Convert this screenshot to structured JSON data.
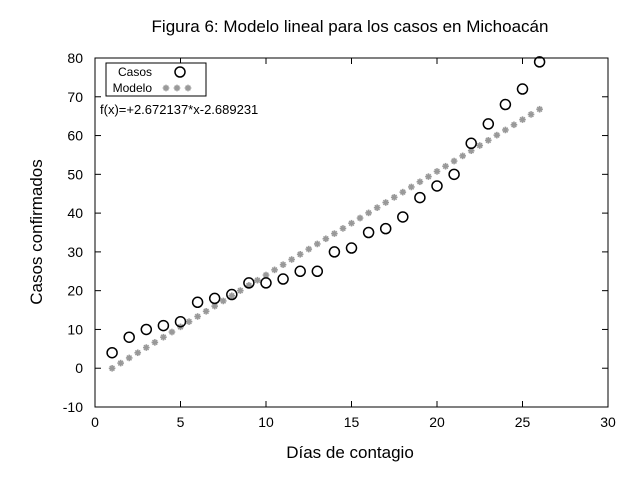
{
  "chart_data": {
    "type": "scatter",
    "title": "Figura 6: Modelo lineal para los casos en Michoacán",
    "xlabel": "Días de contagio",
    "ylabel": "Casos confirmados",
    "xlim": [
      0,
      30
    ],
    "ylim": [
      -10,
      80
    ],
    "xticks": [
      0,
      5,
      10,
      15,
      20,
      25,
      30
    ],
    "yticks": [
      -10,
      0,
      10,
      20,
      30,
      40,
      50,
      60,
      70,
      80
    ],
    "grid": false,
    "legend_position": "top-left",
    "annotation": "f(x)=+2.672137*x-2.689231",
    "model": {
      "slope": 2.672137,
      "intercept": -2.689231,
      "x_from": 1,
      "x_to": 26,
      "step": 0.5
    },
    "series": [
      {
        "name": "Casos",
        "marker": "open-circle",
        "color": "#000000",
        "x": [
          1,
          2,
          3,
          4,
          5,
          6,
          7,
          8,
          9,
          10,
          11,
          12,
          13,
          14,
          15,
          16,
          17,
          18,
          19,
          20,
          21,
          22,
          23,
          24,
          25,
          26
        ],
        "y": [
          4,
          8,
          10,
          11,
          12,
          17,
          18,
          19,
          22,
          22,
          23,
          25,
          25,
          30,
          31,
          35,
          36,
          39,
          44,
          47,
          50,
          58,
          63,
          68,
          72,
          79
        ]
      },
      {
        "name": "Modelo",
        "marker": "asterisk",
        "color": "#999999"
      }
    ]
  }
}
